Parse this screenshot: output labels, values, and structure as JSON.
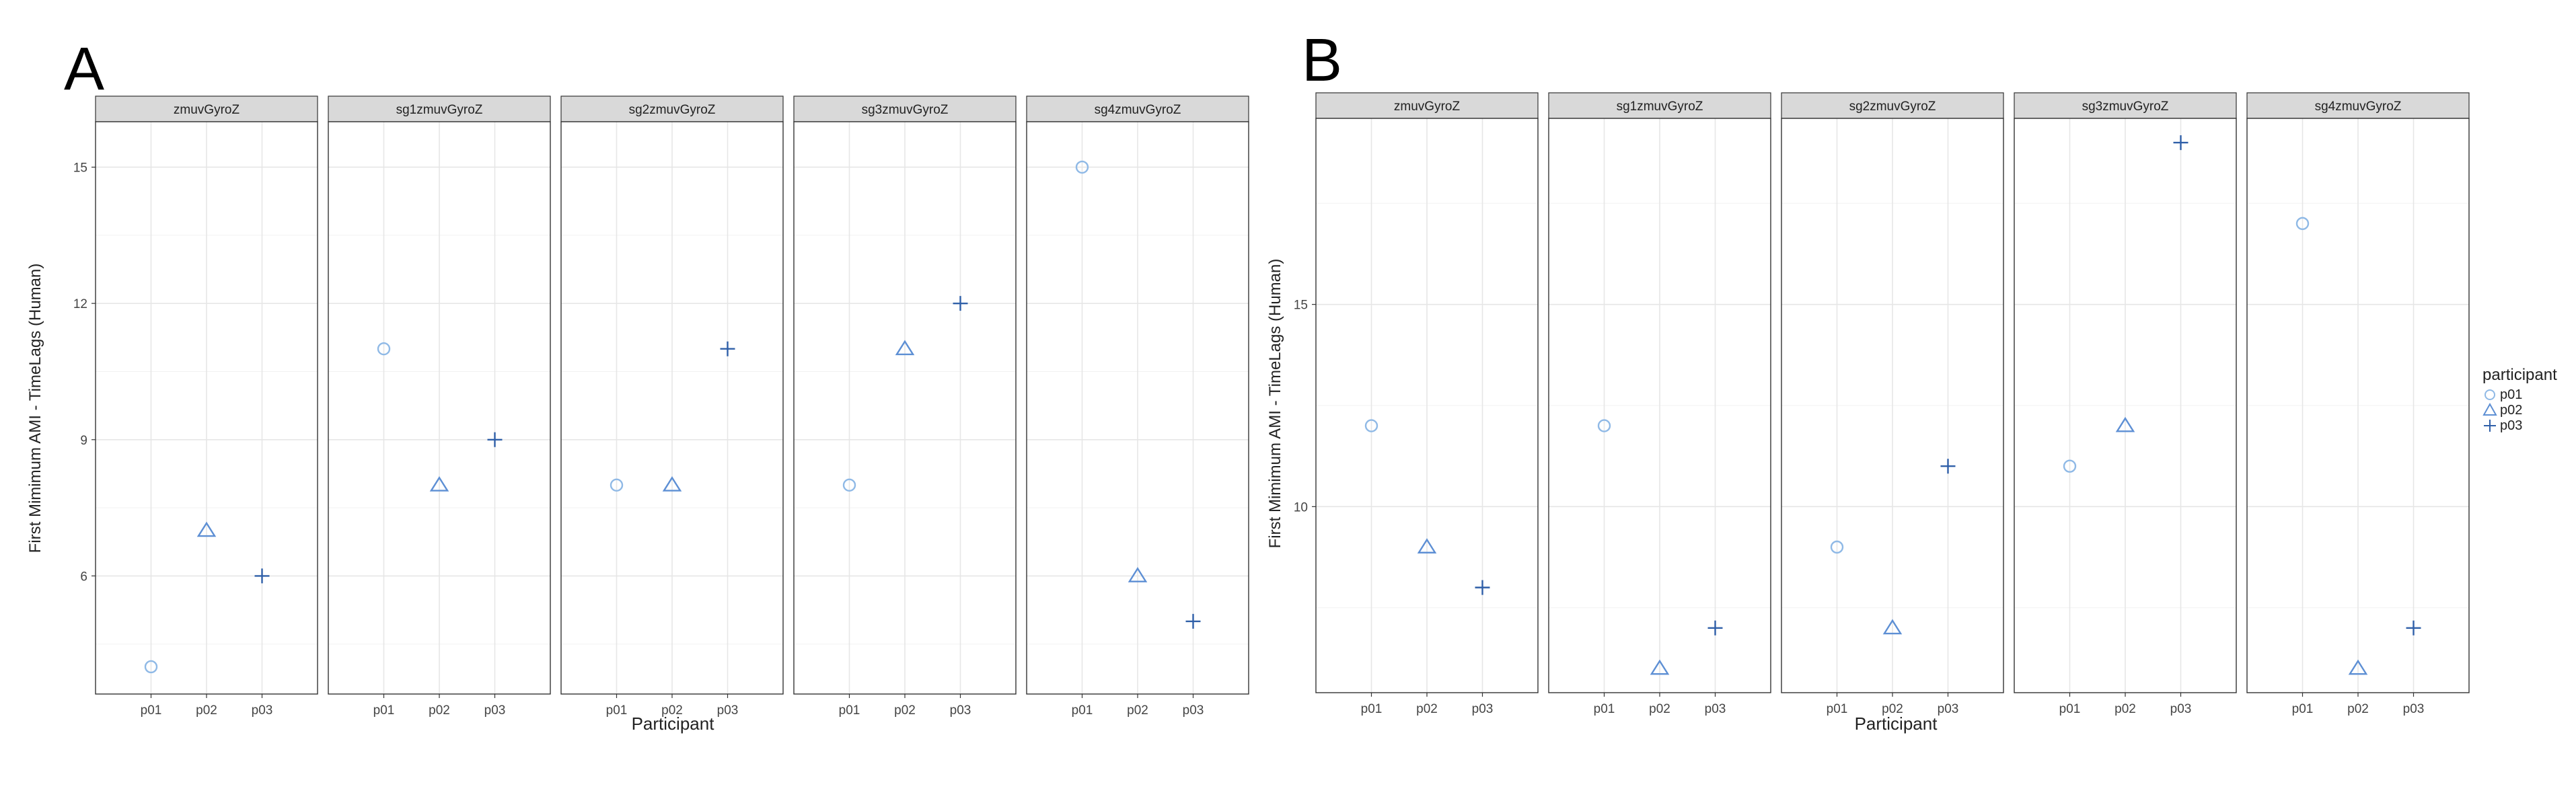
{
  "chart_data": [
    {
      "type": "scatter",
      "panel_label": "A",
      "xlabel": "Participant",
      "ylabel": "First Mimimum AMI - TimeLags (Human)",
      "ylim": [
        3.4,
        16.0
      ],
      "yticks": [
        6,
        9,
        12,
        15
      ],
      "grid": true,
      "categories": [
        "p01",
        "p02",
        "p03"
      ],
      "facets": [
        {
          "name": "zmuvGyroZ",
          "values": [
            4,
            7,
            6
          ]
        },
        {
          "name": "sg1zmuvGyroZ",
          "values": [
            11,
            8,
            9
          ]
        },
        {
          "name": "sg2zmuvGyroZ",
          "values": [
            8,
            8,
            11
          ]
        },
        {
          "name": "sg3zmuvGyroZ",
          "values": [
            8,
            11,
            12
          ]
        },
        {
          "name": "sg4zmuvGyroZ",
          "values": [
            15,
            6,
            5
          ]
        }
      ]
    },
    {
      "type": "scatter",
      "panel_label": "B",
      "xlabel": "Participant",
      "ylabel": "First Mimimum AMI - TimeLags (Human)",
      "ylim": [
        5.4,
        19.6
      ],
      "yticks": [
        10,
        15
      ],
      "grid": true,
      "categories": [
        "p01",
        "p02",
        "p03"
      ],
      "facets": [
        {
          "name": "zmuvGyroZ",
          "values": [
            12,
            9,
            8
          ]
        },
        {
          "name": "sg1zmuvGyroZ",
          "values": [
            12,
            6,
            7
          ]
        },
        {
          "name": "sg2zmuvGyroZ",
          "values": [
            9,
            7,
            11
          ]
        },
        {
          "name": "sg3zmuvGyroZ",
          "values": [
            11,
            12,
            19
          ]
        },
        {
          "name": "sg4zmuvGyroZ",
          "values": [
            17,
            6,
            7
          ]
        }
      ]
    }
  ],
  "legend": {
    "title": "participant",
    "placement": "right",
    "items": [
      {
        "label": "p01",
        "shape": "circle",
        "color": "#8fb9e6"
      },
      {
        "label": "p02",
        "shape": "triangle",
        "color": "#5d8fd4"
      },
      {
        "label": "p03",
        "shape": "plus",
        "color": "#2f5fa8"
      }
    ]
  }
}
